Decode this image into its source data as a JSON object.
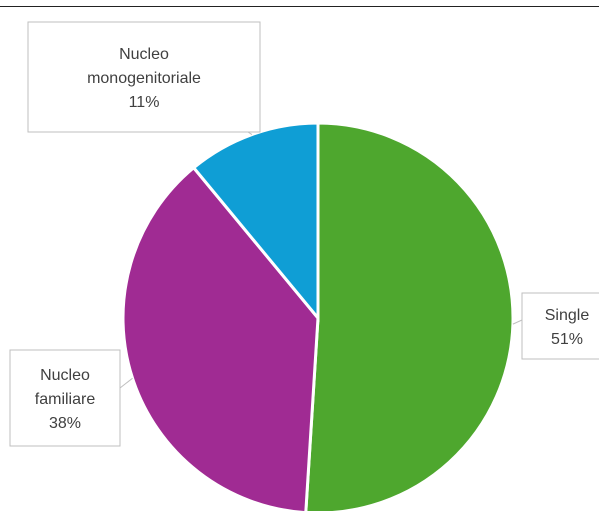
{
  "chart_data": {
    "type": "pie",
    "title": "",
    "slices": [
      {
        "label_lines": [
          "Single",
          "51%"
        ],
        "name": "Single",
        "value": 51,
        "color": "#4ea72e"
      },
      {
        "label_lines": [
          "Nucleo",
          "familiare",
          "38%"
        ],
        "name": "Nucleo familiare",
        "value": 38,
        "color": "#a02b93"
      },
      {
        "label_lines": [
          "Nucleo",
          "monogenitoriale",
          "11%"
        ],
        "name": "Nucleo monogenitoriale",
        "value": 11,
        "color": "#0f9ed5"
      }
    ],
    "data_labels": "callouts with category name and percentage",
    "legend": "none"
  }
}
